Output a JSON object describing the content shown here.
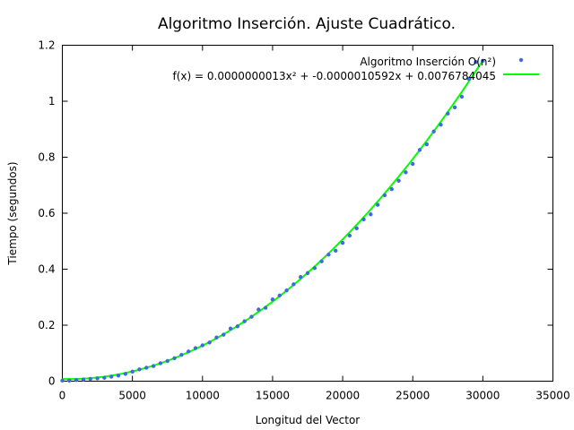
{
  "chart_data": {
    "type": "scatter",
    "title": "Algoritmo Inserción. Ajuste Cuadrático.",
    "xlabel": "Longitud del Vector",
    "ylabel": "Tiempo (segundos)",
    "xlim": [
      0,
      35000
    ],
    "ylim": [
      0,
      1.2
    ],
    "xticks": [
      "0",
      "5000",
      "10000",
      "15000",
      "20000",
      "25000",
      "30000",
      "35000"
    ],
    "yticks": [
      "0",
      "0.2",
      "0.4",
      "0.6",
      "0.8",
      "1",
      "1.2"
    ],
    "grid": false,
    "legend_position": "top-right",
    "colors": {
      "points": "#4169e1",
      "fit": "#00ff00"
    },
    "series": [
      {
        "name": "Algoritmo Inserción O(n²)",
        "kind": "points",
        "x": [
          0,
          500,
          1000,
          1500,
          2000,
          2500,
          3000,
          3500,
          4000,
          4500,
          5000,
          5500,
          6000,
          6500,
          7000,
          7500,
          8000,
          8500,
          9000,
          9500,
          10000,
          10500,
          11000,
          11500,
          12000,
          12500,
          13000,
          13500,
          14000,
          14500,
          15000,
          15500,
          16000,
          16500,
          17000,
          17500,
          18000,
          18500,
          19000,
          19500,
          20000,
          20500,
          21000,
          21500,
          22000,
          22500,
          23000,
          23500,
          24000,
          24500,
          25000,
          25500,
          26000,
          26500,
          27000,
          27500,
          28000,
          28500,
          29000,
          29500,
          30000
        ],
        "y": [
          0.002,
          0.002,
          0.004,
          0.006,
          0.008,
          0.01,
          0.012,
          0.016,
          0.02,
          0.026,
          0.034,
          0.042,
          0.048,
          0.054,
          0.064,
          0.072,
          0.082,
          0.094,
          0.106,
          0.118,
          0.128,
          0.138,
          0.156,
          0.166,
          0.188,
          0.196,
          0.214,
          0.23,
          0.256,
          0.262,
          0.292,
          0.306,
          0.324,
          0.346,
          0.372,
          0.386,
          0.404,
          0.428,
          0.452,
          0.466,
          0.494,
          0.52,
          0.546,
          0.578,
          0.596,
          0.63,
          0.664,
          0.686,
          0.716,
          0.746,
          0.776,
          0.826,
          0.846,
          0.892,
          0.916,
          0.956,
          0.978,
          1.016,
          1.08,
          1.14,
          1.144
        ]
      },
      {
        "name": "f(x) = 0.0000000013x² + -0.0000010592x + 0.0076784045",
        "kind": "fit",
        "coefficients": {
          "a": 1.3e-09,
          "b": -1.0592e-06,
          "c": 0.0076784045
        },
        "x_range": [
          0,
          30000
        ]
      }
    ]
  }
}
